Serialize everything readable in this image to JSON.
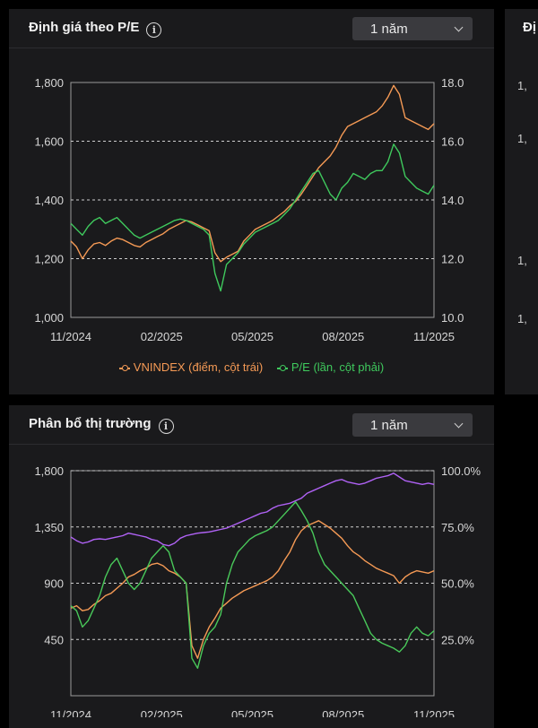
{
  "colors": {
    "vnindex": "#f59a55",
    "pe": "#3fc95d",
    "purple": "#b062f5",
    "green2": "#49c95a",
    "orange2": "#f59a55"
  },
  "pe_card": {
    "title": "Định giá theo P/E",
    "period": "1 năm"
  },
  "alloc_card": {
    "title": "Phân bổ thị trường",
    "period": "1 năm"
  },
  "peek_card": {
    "title": "Đị",
    "ticks": [
      "1,",
      "1,",
      "1,",
      "1,"
    ]
  },
  "chart_data": [
    {
      "type": "line",
      "left_axis": {
        "ylim": [
          1000,
          1800
        ],
        "ticks": [
          "1,000",
          "1,200",
          "1,400",
          "1,600",
          "1,800"
        ]
      },
      "right_axis": {
        "ylim": [
          10,
          18
        ],
        "ticks": [
          "10.0",
          "12.0",
          "14.0",
          "16.0",
          "18.0"
        ]
      },
      "x_ticks": [
        "11/2024",
        "02/2025",
        "05/2025",
        "08/2025",
        "11/2025"
      ],
      "grid": "dashed horizontal at left-axis ticks",
      "legend_position": "bottom",
      "series": [
        {
          "name": "VNINDEX (điểm, cột trái)",
          "axis": "left",
          "color_key": "vnindex",
          "values": [
            1260,
            1240,
            1200,
            1230,
            1250,
            1255,
            1245,
            1260,
            1270,
            1265,
            1255,
            1245,
            1240,
            1255,
            1265,
            1275,
            1285,
            1300,
            1310,
            1320,
            1330,
            1325,
            1315,
            1305,
            1295,
            1220,
            1190,
            1205,
            1215,
            1225,
            1260,
            1280,
            1300,
            1310,
            1320,
            1330,
            1345,
            1360,
            1380,
            1395,
            1420,
            1450,
            1480,
            1510,
            1530,
            1550,
            1580,
            1620,
            1650,
            1660,
            1670,
            1680,
            1690,
            1700,
            1720,
            1750,
            1790,
            1760,
            1680,
            1670,
            1660,
            1650,
            1640,
            1660
          ]
        },
        {
          "name": "P/E (lần, cột phải)",
          "axis": "right",
          "color_key": "pe",
          "values": [
            13.2,
            13.0,
            12.8,
            13.1,
            13.3,
            13.4,
            13.2,
            13.3,
            13.4,
            13.2,
            13.0,
            12.8,
            12.7,
            12.8,
            12.9,
            13.0,
            13.1,
            13.2,
            13.3,
            13.35,
            13.3,
            13.2,
            13.1,
            13.0,
            12.8,
            11.5,
            10.9,
            11.8,
            12.0,
            12.2,
            12.5,
            12.7,
            12.9,
            13.0,
            13.1,
            13.2,
            13.3,
            13.5,
            13.7,
            14.0,
            14.3,
            14.6,
            14.9,
            15.0,
            14.6,
            14.2,
            14.0,
            14.4,
            14.6,
            14.9,
            14.8,
            14.7,
            14.9,
            15.0,
            15.0,
            15.3,
            15.9,
            15.6,
            14.8,
            14.6,
            14.4,
            14.3,
            14.2,
            14.5
          ]
        }
      ]
    },
    {
      "type": "line",
      "left_axis": {
        "ylim": [
          0,
          1800
        ],
        "ticks": [
          "450",
          "900",
          "1,350",
          "1,800"
        ]
      },
      "right_axis": {
        "ylim": [
          0,
          100
        ],
        "ticks": [
          "25.0%",
          "50.0%",
          "75.0%",
          "100.0%"
        ]
      },
      "x_ticks": [
        "11/2024",
        "02/2025",
        "05/2025",
        "08/2025",
        "11/2025"
      ],
      "grid": "dashed horizontal at tick values",
      "series": [
        {
          "axis": "left",
          "color_key": "purple",
          "values": [
            1270,
            1240,
            1220,
            1230,
            1250,
            1255,
            1250,
            1260,
            1270,
            1280,
            1300,
            1290,
            1280,
            1270,
            1250,
            1240,
            1210,
            1200,
            1220,
            1260,
            1280,
            1290,
            1300,
            1305,
            1310,
            1320,
            1330,
            1340,
            1360,
            1380,
            1400,
            1420,
            1440,
            1460,
            1470,
            1500,
            1520,
            1530,
            1540,
            1560,
            1580,
            1620,
            1640,
            1660,
            1680,
            1700,
            1720,
            1730,
            1710,
            1700,
            1690,
            1700,
            1720,
            1740,
            1750,
            1760,
            1780,
            1750,
            1720,
            1710,
            1700,
            1690,
            1700,
            1690
          ]
        },
        {
          "axis": "left",
          "color_key": "orange2",
          "values": [
            700,
            720,
            680,
            690,
            730,
            760,
            800,
            820,
            860,
            900,
            950,
            970,
            1000,
            1020,
            1050,
            1060,
            1040,
            1000,
            980,
            950,
            900,
            400,
            300,
            450,
            550,
            620,
            700,
            740,
            780,
            810,
            840,
            860,
            880,
            900,
            920,
            950,
            1000,
            1080,
            1150,
            1250,
            1320,
            1360,
            1380,
            1400,
            1370,
            1340,
            1300,
            1260,
            1200,
            1150,
            1120,
            1080,
            1050,
            1020,
            1000,
            980,
            960,
            900,
            950,
            980,
            1000,
            990,
            980,
            1000
          ]
        },
        {
          "axis": "left",
          "color_key": "green2",
          "values": [
            720,
            680,
            550,
            600,
            700,
            800,
            950,
            1050,
            1100,
            1000,
            900,
            850,
            900,
            1000,
            1100,
            1150,
            1200,
            1150,
            1000,
            950,
            900,
            300,
            220,
            400,
            500,
            550,
            650,
            900,
            1050,
            1150,
            1200,
            1250,
            1280,
            1300,
            1320,
            1350,
            1400,
            1450,
            1500,
            1550,
            1480,
            1400,
            1300,
            1150,
            1050,
            1000,
            950,
            900,
            850,
            800,
            700,
            600,
            500,
            450,
            420,
            400,
            380,
            350,
            400,
            500,
            550,
            500,
            480,
            520
          ]
        }
      ]
    }
  ]
}
